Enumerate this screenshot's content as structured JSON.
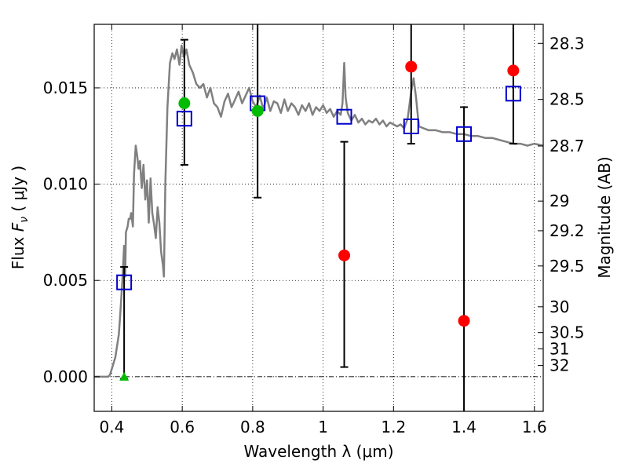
{
  "chart_data": {
    "type": "scatter",
    "xlabel": "Wavelength  λ (μm)",
    "ylabel": "Flux  F_ν  ( μJy )",
    "ylabel_parts": {
      "pre": "Flux  ",
      "var": "F",
      "sub": "ν",
      "post": "  ( μJy )"
    },
    "y2label": "Magnitude (AB)",
    "xlim": [
      0.35,
      1.625
    ],
    "ylim": [
      -0.0018,
      0.0183
    ],
    "grid": true,
    "x_ticks": [
      {
        "v": 0.4,
        "label": "0.4"
      },
      {
        "v": 0.6,
        "label": "0.6"
      },
      {
        "v": 0.8,
        "label": "0.8"
      },
      {
        "v": 1.0,
        "label": "1"
      },
      {
        "v": 1.2,
        "label": "1.2"
      },
      {
        "v": 1.4,
        "label": "1.4"
      },
      {
        "v": 1.6,
        "label": "1.6"
      }
    ],
    "y_ticks": [
      {
        "v": 0.0,
        "label": "0.000"
      },
      {
        "v": 0.005,
        "label": "0.005"
      },
      {
        "v": 0.01,
        "label": "0.010"
      },
      {
        "v": 0.015,
        "label": "0.015"
      }
    ],
    "y2_ticks": [
      {
        "flux": 0.01731,
        "label": "28.3"
      },
      {
        "flux": 0.0144,
        "label": "28.5"
      },
      {
        "flux": 0.01198,
        "label": "28.7"
      },
      {
        "flux": 0.00912,
        "label": "29"
      },
      {
        "flux": 0.00758,
        "label": "29.2"
      },
      {
        "flux": 0.00575,
        "label": "29.5"
      },
      {
        "flux": 0.00363,
        "label": "30"
      },
      {
        "flux": 0.00229,
        "label": "30.5"
      },
      {
        "flux": 0.00145,
        "label": "31"
      },
      {
        "flux": 0.00058,
        "label": "32"
      }
    ],
    "zero_line": 0.0,
    "colors": {
      "model": "#808080",
      "box": "#0000cc",
      "red": "#ff0000",
      "green": "#00bb00",
      "errorbar": "#000000"
    },
    "model_spectrum": [
      [
        0.35,
        0.0
      ],
      [
        0.39,
        0.0
      ],
      [
        0.395,
        0.0001
      ],
      [
        0.4,
        0.0004
      ],
      [
        0.41,
        0.001
      ],
      [
        0.42,
        0.0022
      ],
      [
        0.425,
        0.0035
      ],
      [
        0.43,
        0.005
      ],
      [
        0.435,
        0.0068
      ],
      [
        0.438,
        0.0052
      ],
      [
        0.44,
        0.0075
      ],
      [
        0.445,
        0.0078
      ],
      [
        0.448,
        0.0082
      ],
      [
        0.452,
        0.0082
      ],
      [
        0.455,
        0.0085
      ],
      [
        0.46,
        0.0078
      ],
      [
        0.463,
        0.0105
      ],
      [
        0.468,
        0.012
      ],
      [
        0.472,
        0.0115
      ],
      [
        0.476,
        0.0108
      ],
      [
        0.48,
        0.0112
      ],
      [
        0.485,
        0.0098
      ],
      [
        0.49,
        0.011
      ],
      [
        0.495,
        0.0092
      ],
      [
        0.5,
        0.0102
      ],
      [
        0.505,
        0.008
      ],
      [
        0.51,
        0.0103
      ],
      [
        0.515,
        0.0085
      ],
      [
        0.52,
        0.0079
      ],
      [
        0.525,
        0.0072
      ],
      [
        0.53,
        0.0088
      ],
      [
        0.535,
        0.008
      ],
      [
        0.54,
        0.0065
      ],
      [
        0.545,
        0.0058
      ],
      [
        0.548,
        0.0052
      ],
      [
        0.552,
        0.01
      ],
      [
        0.558,
        0.014
      ],
      [
        0.565,
        0.0163
      ],
      [
        0.572,
        0.0168
      ],
      [
        0.578,
        0.0165
      ],
      [
        0.585,
        0.017
      ],
      [
        0.592,
        0.0162
      ],
      [
        0.598,
        0.0172
      ],
      [
        0.605,
        0.0166
      ],
      [
        0.612,
        0.017
      ],
      [
        0.62,
        0.0162
      ],
      [
        0.63,
        0.0158
      ],
      [
        0.64,
        0.0152
      ],
      [
        0.65,
        0.015
      ],
      [
        0.66,
        0.0152
      ],
      [
        0.67,
        0.0145
      ],
      [
        0.68,
        0.015
      ],
      [
        0.69,
        0.0142
      ],
      [
        0.7,
        0.014
      ],
      [
        0.71,
        0.0135
      ],
      [
        0.72,
        0.0143
      ],
      [
        0.73,
        0.0147
      ],
      [
        0.74,
        0.014
      ],
      [
        0.75,
        0.0144
      ],
      [
        0.76,
        0.0148
      ],
      [
        0.77,
        0.0142
      ],
      [
        0.78,
        0.0146
      ],
      [
        0.79,
        0.015
      ],
      [
        0.8,
        0.0143
      ],
      [
        0.81,
        0.014
      ],
      [
        0.82,
        0.0146
      ],
      [
        0.83,
        0.0139
      ],
      [
        0.84,
        0.0145
      ],
      [
        0.85,
        0.0138
      ],
      [
        0.86,
        0.0143
      ],
      [
        0.87,
        0.0142
      ],
      [
        0.88,
        0.0137
      ],
      [
        0.89,
        0.0144
      ],
      [
        0.9,
        0.0138
      ],
      [
        0.91,
        0.0142
      ],
      [
        0.92,
        0.014
      ],
      [
        0.93,
        0.0136
      ],
      [
        0.94,
        0.0141
      ],
      [
        0.95,
        0.0138
      ],
      [
        0.96,
        0.0142
      ],
      [
        0.97,
        0.0136
      ],
      [
        0.98,
        0.014
      ],
      [
        0.99,
        0.0138
      ],
      [
        1.0,
        0.0141
      ],
      [
        1.01,
        0.0137
      ],
      [
        1.02,
        0.0139
      ],
      [
        1.03,
        0.0135
      ],
      [
        1.04,
        0.0138
      ],
      [
        1.05,
        0.0136
      ],
      [
        1.055,
        0.0142
      ],
      [
        1.06,
        0.0163
      ],
      [
        1.064,
        0.0145
      ],
      [
        1.07,
        0.0137
      ],
      [
        1.08,
        0.0133
      ],
      [
        1.09,
        0.0136
      ],
      [
        1.1,
        0.0132
      ],
      [
        1.11,
        0.0134
      ],
      [
        1.12,
        0.0131
      ],
      [
        1.13,
        0.0133
      ],
      [
        1.14,
        0.0132
      ],
      [
        1.15,
        0.0134
      ],
      [
        1.16,
        0.0131
      ],
      [
        1.17,
        0.0133
      ],
      [
        1.18,
        0.013
      ],
      [
        1.19,
        0.0132
      ],
      [
        1.2,
        0.0131
      ],
      [
        1.21,
        0.013
      ],
      [
        1.22,
        0.0131
      ],
      [
        1.23,
        0.0129
      ],
      [
        1.24,
        0.0134
      ],
      [
        1.25,
        0.0148
      ],
      [
        1.257,
        0.0155
      ],
      [
        1.264,
        0.0145
      ],
      [
        1.272,
        0.013
      ],
      [
        1.285,
        0.0129
      ],
      [
        1.3,
        0.0128
      ],
      [
        1.32,
        0.0128
      ],
      [
        1.34,
        0.0127
      ],
      [
        1.36,
        0.0127
      ],
      [
        1.38,
        0.0126
      ],
      [
        1.4,
        0.0126
      ],
      [
        1.42,
        0.0125
      ],
      [
        1.44,
        0.0125
      ],
      [
        1.46,
        0.0124
      ],
      [
        1.48,
        0.0124
      ],
      [
        1.5,
        0.0123
      ],
      [
        1.52,
        0.0122
      ],
      [
        1.54,
        0.0121
      ],
      [
        1.56,
        0.0121
      ],
      [
        1.58,
        0.012
      ],
      [
        1.6,
        0.0121
      ],
      [
        1.625,
        0.012
      ]
    ],
    "model_points": [
      {
        "x": 0.435,
        "y": 0.0049
      },
      {
        "x": 0.606,
        "y": 0.0134
      },
      {
        "x": 0.814,
        "y": 0.0142
      },
      {
        "x": 1.06,
        "y": 0.0135
      },
      {
        "x": 1.25,
        "y": 0.013
      },
      {
        "x": 1.4,
        "y": 0.0126
      },
      {
        "x": 1.54,
        "y": 0.0147
      }
    ],
    "observed": [
      {
        "x": 0.435,
        "y": 0.0,
        "err_lo": -0.0001,
        "err_hi": 0.0057,
        "color": "green",
        "marker": "triangle"
      },
      {
        "x": 0.606,
        "y": 0.0142,
        "err_lo": 0.011,
        "err_hi": 0.0175,
        "color": "green",
        "marker": "circle"
      },
      {
        "x": 0.814,
        "y": 0.0138,
        "err_lo": 0.0093,
        "err_hi": 0.019,
        "color": "green",
        "marker": "circle"
      },
      {
        "x": 1.06,
        "y": 0.0063,
        "err_lo": 0.0005,
        "err_hi": 0.0122,
        "color": "red",
        "marker": "circle"
      },
      {
        "x": 1.25,
        "y": 0.0161,
        "err_lo": 0.0121,
        "err_hi": 0.019,
        "color": "red",
        "marker": "circle"
      },
      {
        "x": 1.4,
        "y": 0.0029,
        "err_lo": -0.002,
        "err_hi": 0.014,
        "color": "red",
        "marker": "circle"
      },
      {
        "x": 1.54,
        "y": 0.0159,
        "err_lo": 0.0121,
        "err_hi": 0.019,
        "color": "red",
        "marker": "circle"
      }
    ]
  }
}
